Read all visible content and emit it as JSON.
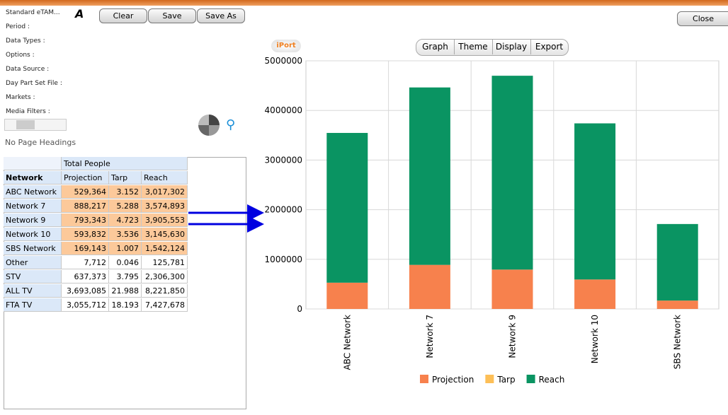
{
  "toolbar": {
    "app_name": "Standard eTAM...",
    "buttons": [
      "Clear",
      "Save",
      "Save As"
    ],
    "close": "Close"
  },
  "info_labels": [
    "Period :",
    "Data Types :",
    "Options :",
    "Data Source :",
    "Day Part Set File :",
    "Markets :",
    "Media Filters :"
  ],
  "page_headings": "No Page Headings",
  "table": {
    "group_header": "Total People",
    "columns": [
      "Network",
      "Projection",
      "Tarp",
      "Reach"
    ],
    "rows": [
      [
        "ABC Network",
        "529,364",
        "3.152",
        "3,017,302"
      ],
      [
        "Network 7",
        "888,217",
        "5.288",
        "3,574,893"
      ],
      [
        "Network 9",
        "793,343",
        "4.723",
        "3,905,553"
      ],
      [
        "Network 10",
        "593,832",
        "3.536",
        "3,145,630"
      ],
      [
        "SBS Network",
        "169,143",
        "1.007",
        "1,542,124"
      ],
      [
        "Other",
        "7,712",
        "0.046",
        "125,781"
      ],
      [
        "STV",
        "637,373",
        "3.795",
        "2,306,300"
      ],
      [
        "ALL TV",
        "3,693,085",
        "21.988",
        "8,221,850"
      ],
      [
        "FTA TV",
        "3,055,712",
        "18.193",
        "7,427,678"
      ]
    ]
  },
  "chart_tabs": [
    "Graph",
    "Theme",
    "Display",
    "Export"
  ],
  "logo": "iPort",
  "chart_data": {
    "type": "stacked_bar",
    "categories": [
      "ABC Network",
      "Network 7",
      "Network 9",
      "Network 10",
      "SBS Network"
    ],
    "series": [
      {
        "name": "Projection",
        "color": "#f7814d",
        "values": [
          529364,
          888217,
          793343,
          593832,
          169143
        ]
      },
      {
        "name": "Tarp",
        "color": "#fdbf57",
        "values": [
          3.152,
          5.288,
          4.723,
          3.536,
          1.007
        ]
      },
      {
        "name": "Reach",
        "color": "#0a9462",
        "values": [
          3017302,
          3574893,
          3905553,
          3145630,
          1542124
        ]
      }
    ],
    "ylim": [
      0,
      5000000
    ],
    "yticks": [
      0,
      1000000,
      2000000,
      3000000,
      4000000,
      5000000
    ],
    "grid": true
  }
}
